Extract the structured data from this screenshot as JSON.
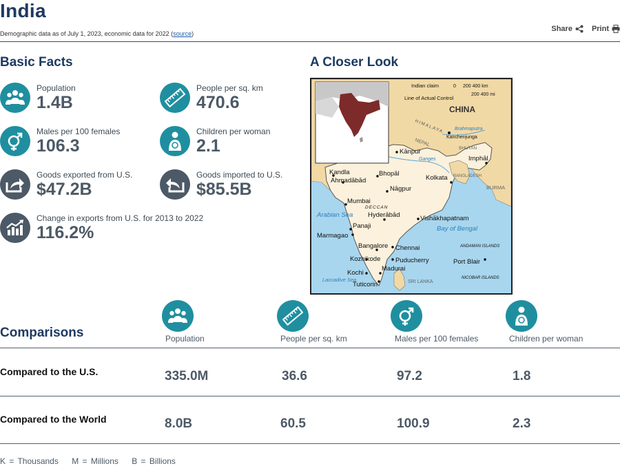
{
  "header": {
    "title": "India",
    "subtitle_prefix": "Demographic data as of July 1, 2023, economic data for 2022 (",
    "subtitle_link": "source",
    "subtitle_suffix": ")",
    "share_label": "Share",
    "print_label": "Print"
  },
  "basic_facts": {
    "heading": "Basic Facts",
    "items": [
      {
        "label": "Population",
        "value": "1.4B",
        "icon": "people-icon"
      },
      {
        "label": "People per sq. km",
        "value": "470.6",
        "icon": "ruler-icon"
      },
      {
        "label": "Males per 100 females",
        "value": "106.3",
        "icon": "gender-icon"
      },
      {
        "label": "Children per woman",
        "value": "2.1",
        "icon": "mother-child-icon"
      },
      {
        "label": "Goods exported from U.S.",
        "value": "$47.2B",
        "icon": "export-icon"
      },
      {
        "label": "Goods imported to U.S.",
        "value": "$85.5B",
        "icon": "import-icon"
      },
      {
        "label": "Change in exports from U.S. for 2013 to 2022",
        "value": "116.2%",
        "icon": "trend-chart-icon"
      }
    ]
  },
  "closer_look": {
    "heading": "A Closer Look",
    "map_labels": {
      "china": "CHINA",
      "indian_claim": "Indian claim",
      "line_of_control": "Line of Actual Control",
      "himalaya": "HIMALAYA",
      "nepal": "NEPAL",
      "bhutan": "BHUTAN",
      "bangladesh": "BANGLADESH",
      "burma": "BURMA",
      "sri_lanka": "SRI LANKA",
      "arabian_sea": "Arabian Sea",
      "bay_of_bengal": "Bay of Bengal",
      "laccadive_sea": "Laccadive Sea",
      "andaman": "ANDAMAN ISLANDS",
      "nicobar": "NICOBAR ISLANDS",
      "deccan": "DECCAN",
      "ganges": "Ganges",
      "brahmaputra": "Brahmaputra",
      "kanchenjunga": "Kanchenjunga",
      "scale_km": "200   400 km",
      "scale_mi": "200      400 mi",
      "scale_zero": "0",
      "cities": {
        "kandla": "Kandla",
        "ahmadabad": "Ahmadābād",
        "bhopal": "Bhopāl",
        "nagpur": "Nāgpur",
        "kolkata": "Kolkata",
        "kanpur": "Kānpur",
        "imphal": "Imphāl",
        "mumbai": "Mumbai",
        "hyderabad": "Hyderābād",
        "vishakhapatnam": "Vishākhapatnam",
        "panaji": "Panaji",
        "marmagao": "Marmagao",
        "bangalore": "Bangalore",
        "chennai": "Chennai",
        "kozhikode": "Kozhikode",
        "puducherry": "Puducherry",
        "madurai": "Madurai",
        "kochi": "Kochi",
        "tuticorin": "Tuticorin",
        "port_blair": "Port Blair"
      }
    }
  },
  "comparisons": {
    "heading": "Comparisons",
    "columns": [
      {
        "label": "Population",
        "icon": "people-icon"
      },
      {
        "label": "People per sq. km",
        "icon": "ruler-icon"
      },
      {
        "label": "Males per 100 females",
        "icon": "gender-icon"
      },
      {
        "label": "Children per woman",
        "icon": "mother-child-icon"
      }
    ],
    "rows": [
      {
        "label": "Compared to the U.S.",
        "values": [
          "335.0M",
          "36.6",
          "97.2",
          "1.8"
        ]
      },
      {
        "label": "Compared to the World",
        "values": [
          "8.0B",
          "60.5",
          "100.9",
          "2.3"
        ]
      }
    ]
  },
  "legend": {
    "k": "K = Thousands",
    "m": "M = Millions",
    "b": "B = Billions"
  },
  "colors": {
    "teal": "#1f8fa0",
    "slate": "#4c5966",
    "navy": "#1e3a62",
    "india": "#fbf1dc",
    "neighbors": "#f1d9a6",
    "water": "#a8d6ee",
    "inset_india": "#7d2a2a"
  }
}
